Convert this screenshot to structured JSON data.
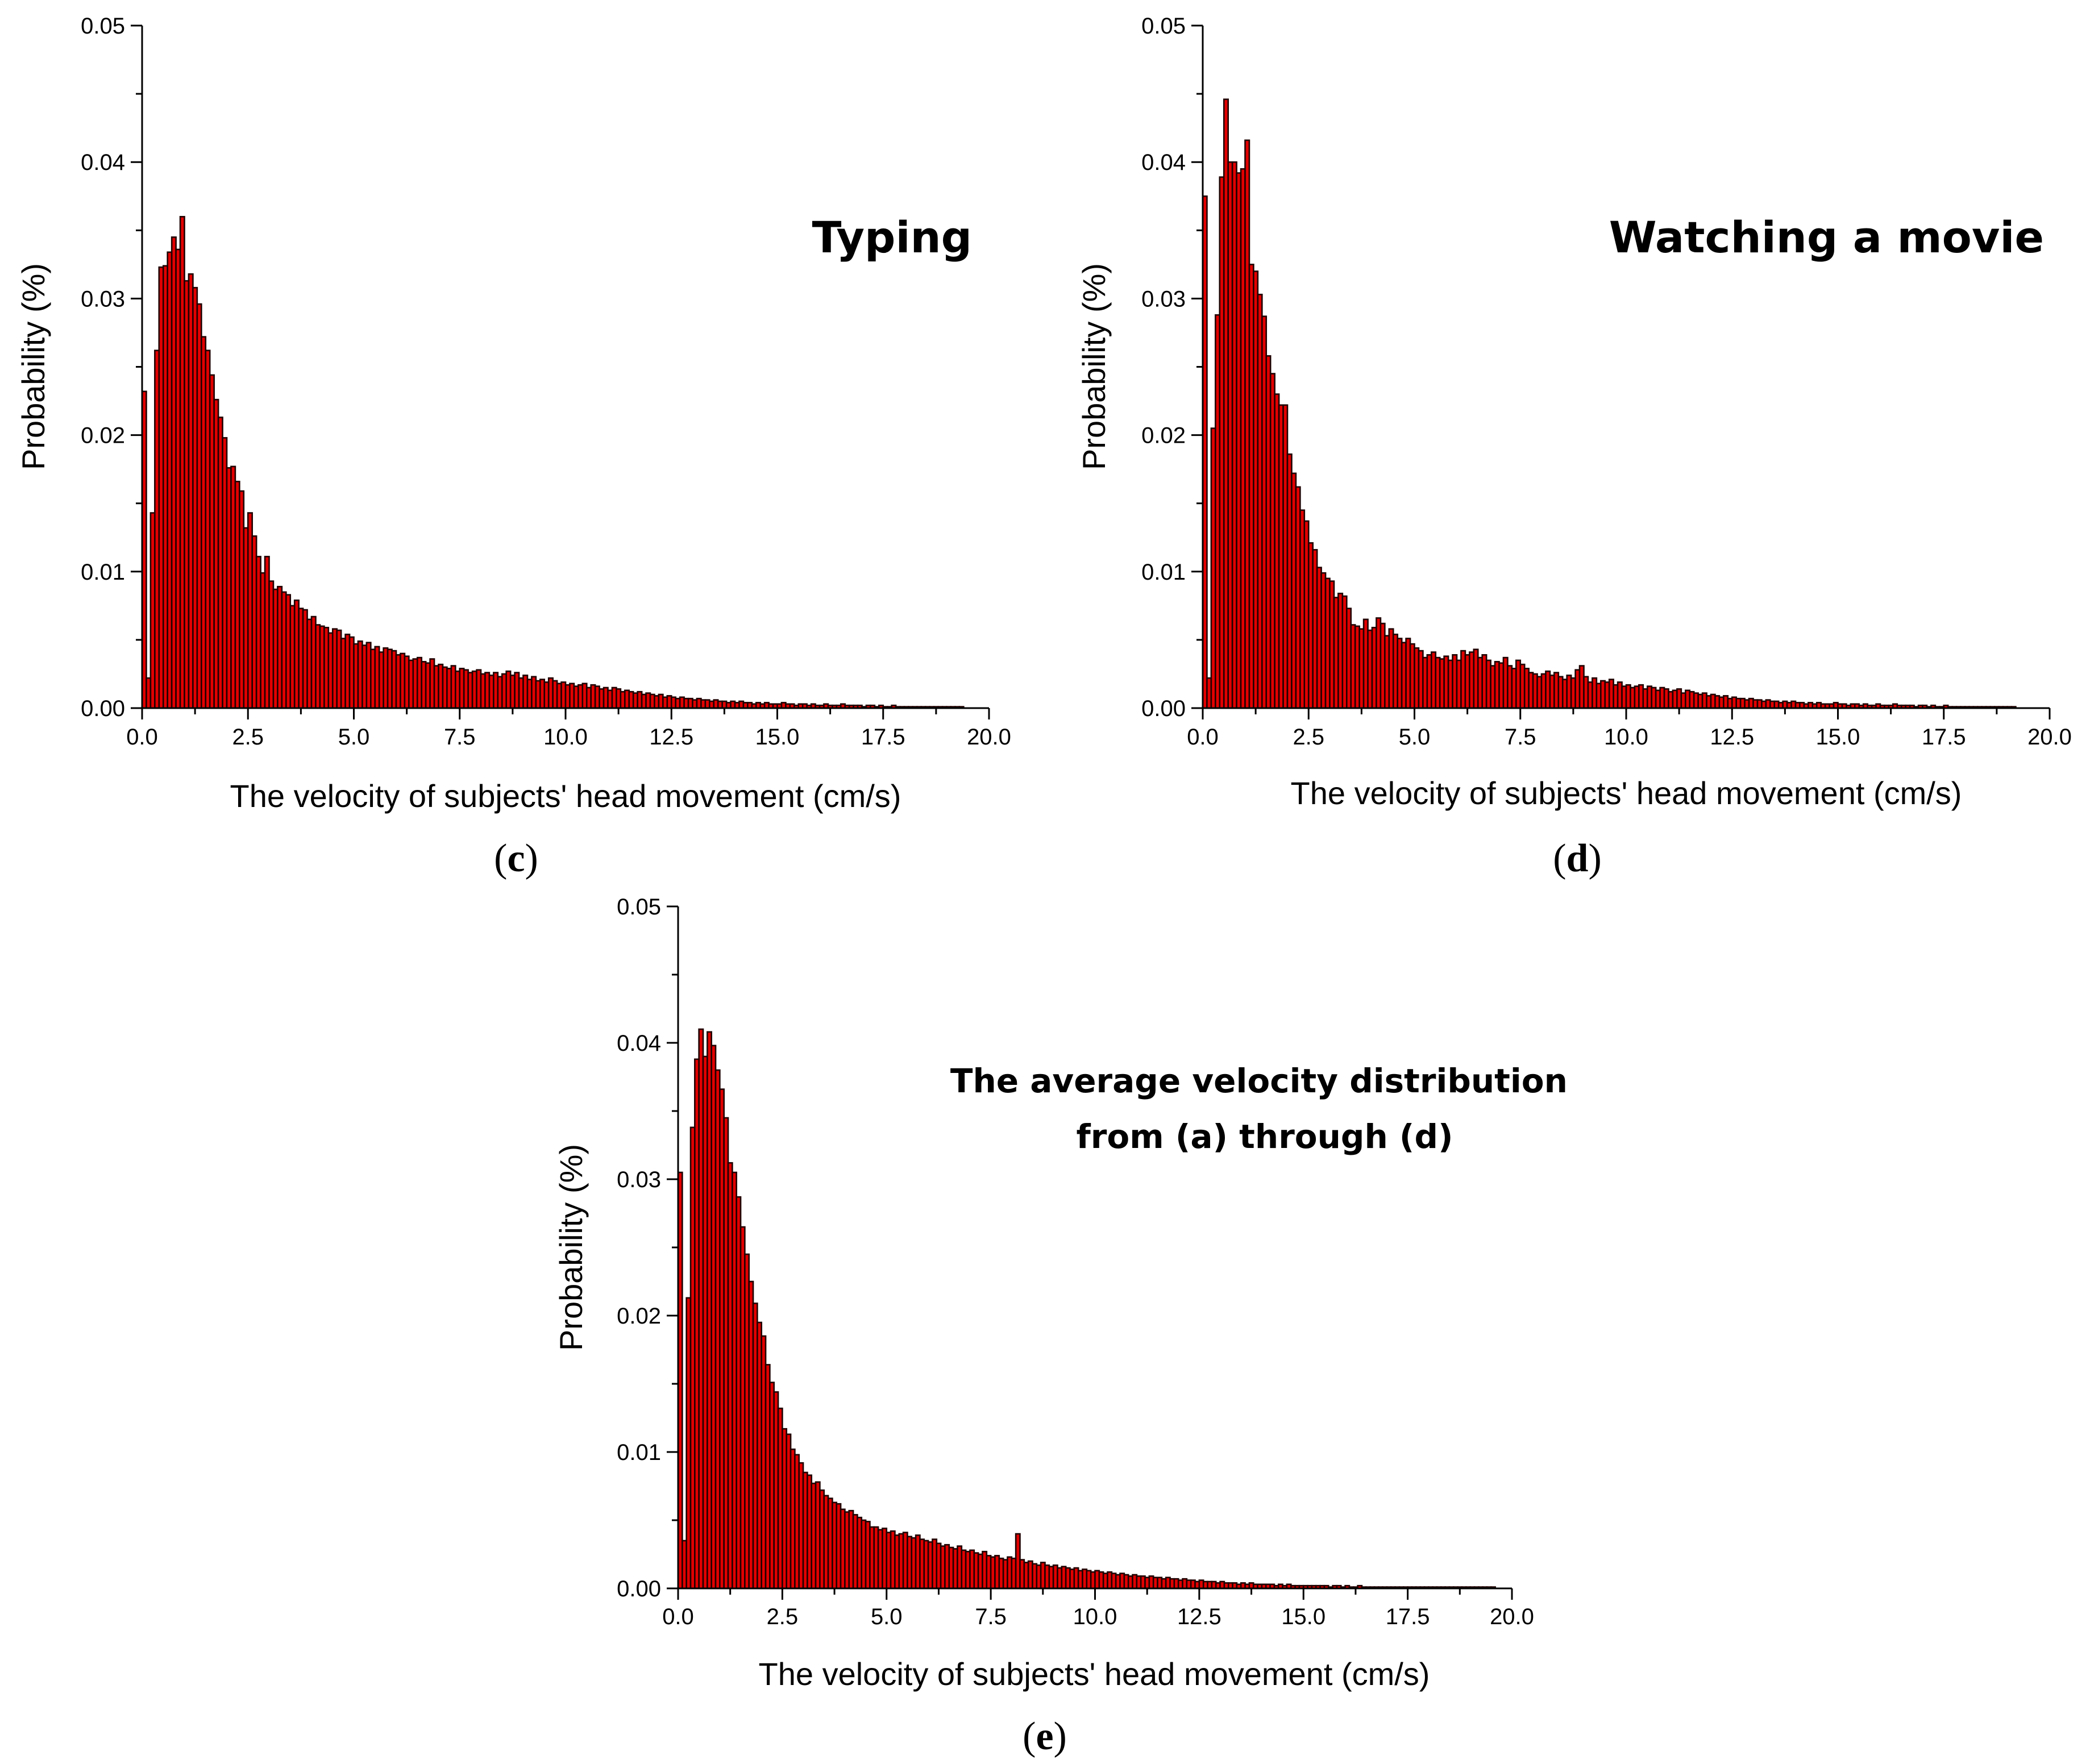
{
  "colors": {
    "bar_fill": "#e30000",
    "bar_edge": "#200000",
    "axis": "#000000"
  },
  "chart_data": [
    {
      "id": "c",
      "type": "bar",
      "panel_label": "c",
      "annotation": [
        "Typing"
      ],
      "xlabel": "The velocity of subjects' head movement (cm/s)",
      "ylabel": "Probability (%)",
      "xlim": [
        0,
        20
      ],
      "ylim": [
        0,
        0.05
      ],
      "xticks": [
        "0.0",
        "2.5",
        "5.0",
        "7.5",
        "10.0",
        "12.5",
        "15.0",
        "17.5",
        "20.0"
      ],
      "yticks": [
        "0.00",
        "0.01",
        "0.02",
        "0.03",
        "0.04",
        "0.05"
      ],
      "bin_width": 0.1,
      "values": [
        0.0232,
        0.0022,
        0.0143,
        0.0262,
        0.0323,
        0.0324,
        0.0334,
        0.0345,
        0.0336,
        0.036,
        0.0313,
        0.0318,
        0.0308,
        0.0296,
        0.0272,
        0.0262,
        0.0244,
        0.0226,
        0.0213,
        0.0198,
        0.0176,
        0.0177,
        0.0166,
        0.0159,
        0.0132,
        0.0143,
        0.0126,
        0.0111,
        0.0099,
        0.0111,
        0.0093,
        0.0087,
        0.0089,
        0.0085,
        0.0083,
        0.0075,
        0.0079,
        0.0073,
        0.0072,
        0.0065,
        0.0067,
        0.0061,
        0.006,
        0.0059,
        0.0055,
        0.0058,
        0.0057,
        0.0051,
        0.0054,
        0.0052,
        0.0047,
        0.0049,
        0.0046,
        0.0048,
        0.0043,
        0.0045,
        0.0041,
        0.0044,
        0.0043,
        0.0042,
        0.0039,
        0.004,
        0.0038,
        0.0035,
        0.0036,
        0.0037,
        0.0034,
        0.0033,
        0.0036,
        0.0031,
        0.0032,
        0.003,
        0.0029,
        0.0031,
        0.0027,
        0.0029,
        0.0028,
        0.0026,
        0.0027,
        0.0028,
        0.0025,
        0.0026,
        0.0024,
        0.0026,
        0.0023,
        0.0025,
        0.0027,
        0.0024,
        0.0026,
        0.0022,
        0.0024,
        0.0021,
        0.0023,
        0.002,
        0.0021,
        0.0019,
        0.0022,
        0.002,
        0.0018,
        0.0019,
        0.0017,
        0.0018,
        0.0016,
        0.0017,
        0.0018,
        0.0015,
        0.0017,
        0.0016,
        0.0014,
        0.0015,
        0.0013,
        0.0015,
        0.0014,
        0.0012,
        0.0013,
        0.0012,
        0.0011,
        0.0012,
        0.001,
        0.0011,
        0.001,
        0.0009,
        0.001,
        0.0008,
        0.0009,
        0.0008,
        0.0007,
        0.0008,
        0.0007,
        0.0007,
        0.0006,
        0.0007,
        0.0006,
        0.0006,
        0.0005,
        0.0006,
        0.0005,
        0.0005,
        0.0004,
        0.0005,
        0.0004,
        0.0005,
        0.0004,
        0.0004,
        0.0003,
        0.0004,
        0.0003,
        0.0004,
        0.0003,
        0.0003,
        0.0003,
        0.0004,
        0.0003,
        0.0003,
        0.0002,
        0.0003,
        0.0003,
        0.0002,
        0.0003,
        0.0002,
        0.0002,
        0.0003,
        0.0002,
        0.0002,
        0.0002,
        0.0003,
        0.0002,
        0.0002,
        0.0002,
        0.0002,
        0.0001,
        0.0002,
        0.0002,
        0.0001,
        0.0002,
        0.0001,
        0.0001,
        0.0002,
        0.0001,
        0.0001,
        0.0001,
        0.0001,
        0.0001,
        0.0001,
        0.0001,
        0.0001,
        0.0001,
        0.0001,
        0.0001,
        0.0001,
        0.0001,
        0.0001,
        0.0001,
        0.0001
      ]
    },
    {
      "id": "d",
      "type": "bar",
      "panel_label": "d",
      "annotation": [
        "Watching a movie"
      ],
      "xlabel": "The velocity of subjects' head movement (cm/s)",
      "ylabel": "Probability (%)",
      "xlim": [
        0,
        20
      ],
      "ylim": [
        0,
        0.05
      ],
      "xticks": [
        "0.0",
        "2.5",
        "5.0",
        "7.5",
        "10.0",
        "12.5",
        "15.0",
        "17.5",
        "20.0"
      ],
      "yticks": [
        "0.00",
        "0.01",
        "0.02",
        "0.03",
        "0.04",
        "0.05"
      ],
      "bin_width": 0.1,
      "values": [
        0.0375,
        0.0022,
        0.0205,
        0.0288,
        0.0389,
        0.0446,
        0.04,
        0.04,
        0.0392,
        0.0395,
        0.0416,
        0.0325,
        0.032,
        0.0303,
        0.0287,
        0.0258,
        0.0245,
        0.023,
        0.0222,
        0.0222,
        0.0186,
        0.0172,
        0.0162,
        0.0145,
        0.0137,
        0.0121,
        0.0116,
        0.0103,
        0.0099,
        0.0095,
        0.0093,
        0.0081,
        0.0084,
        0.0082,
        0.0073,
        0.0061,
        0.006,
        0.0058,
        0.0065,
        0.0057,
        0.0059,
        0.0066,
        0.0062,
        0.0053,
        0.0058,
        0.0054,
        0.0051,
        0.0048,
        0.0051,
        0.0047,
        0.0044,
        0.0042,
        0.0037,
        0.0039,
        0.0041,
        0.0037,
        0.0036,
        0.0038,
        0.0035,
        0.0039,
        0.0035,
        0.0042,
        0.0039,
        0.0041,
        0.0043,
        0.0037,
        0.0039,
        0.0035,
        0.0031,
        0.0034,
        0.0033,
        0.0037,
        0.0031,
        0.0029,
        0.0035,
        0.0032,
        0.0029,
        0.0026,
        0.0025,
        0.0023,
        0.0025,
        0.0027,
        0.0024,
        0.0026,
        0.0023,
        0.0021,
        0.0024,
        0.0022,
        0.0028,
        0.0031,
        0.0023,
        0.0019,
        0.0022,
        0.0018,
        0.002,
        0.0019,
        0.0021,
        0.0017,
        0.0019,
        0.0016,
        0.0017,
        0.0015,
        0.0016,
        0.0017,
        0.0014,
        0.0016,
        0.0015,
        0.0013,
        0.0015,
        0.0014,
        0.0012,
        0.0013,
        0.0014,
        0.0011,
        0.0013,
        0.0012,
        0.0011,
        0.001,
        0.0011,
        0.0009,
        0.001,
        0.0009,
        0.0008,
        0.0009,
        0.0007,
        0.0008,
        0.0007,
        0.0007,
        0.0006,
        0.0007,
        0.0006,
        0.0006,
        0.0005,
        0.0006,
        0.0005,
        0.0005,
        0.0004,
        0.0005,
        0.0004,
        0.0005,
        0.0004,
        0.0004,
        0.0003,
        0.0004,
        0.0003,
        0.0004,
        0.0003,
        0.0003,
        0.0003,
        0.0004,
        0.0003,
        0.0003,
        0.0002,
        0.0003,
        0.0003,
        0.0002,
        0.0003,
        0.0002,
        0.0002,
        0.0003,
        0.0002,
        0.0002,
        0.0002,
        0.0003,
        0.0002,
        0.0002,
        0.0002,
        0.0002,
        0.0001,
        0.0002,
        0.0002,
        0.0001,
        0.0002,
        0.0001,
        0.0001,
        0.0002,
        0.0001,
        0.0001,
        0.0001,
        0.0001,
        0.0001,
        0.0001,
        0.0001,
        0.0001,
        0.0001,
        0.0001,
        0.0001,
        0.0001,
        0.0001,
        0.0001,
        0.0001,
        0.0001
      ]
    },
    {
      "id": "e",
      "type": "bar",
      "panel_label": "e",
      "annotation": [
        "The average velocity distribution",
        "from (a) through (d)"
      ],
      "xlabel": "The velocity of subjects' head movement (cm/s)",
      "ylabel": "Probability (%)",
      "xlim": [
        0,
        20
      ],
      "ylim": [
        0,
        0.05
      ],
      "xticks": [
        "0.0",
        "2.5",
        "5.0",
        "7.5",
        "10.0",
        "12.5",
        "15.0",
        "17.5",
        "20.0"
      ],
      "yticks": [
        "0.00",
        "0.01",
        "0.02",
        "0.03",
        "0.04",
        "0.05"
      ],
      "bin_width": 0.1,
      "values": [
        0.0305,
        0.0035,
        0.0213,
        0.0338,
        0.0388,
        0.041,
        0.039,
        0.0408,
        0.0398,
        0.038,
        0.0366,
        0.0345,
        0.0312,
        0.0305,
        0.0287,
        0.0265,
        0.0245,
        0.0225,
        0.0209,
        0.0195,
        0.0185,
        0.0164,
        0.0151,
        0.0144,
        0.0132,
        0.0117,
        0.0113,
        0.0102,
        0.0098,
        0.0092,
        0.0085,
        0.0083,
        0.0077,
        0.0078,
        0.0072,
        0.0068,
        0.0066,
        0.0063,
        0.0062,
        0.0058,
        0.0056,
        0.0057,
        0.0054,
        0.0052,
        0.005,
        0.0049,
        0.0045,
        0.0045,
        0.0043,
        0.0044,
        0.0041,
        0.0042,
        0.0039,
        0.004,
        0.0041,
        0.0038,
        0.0037,
        0.0039,
        0.0036,
        0.0035,
        0.0034,
        0.0036,
        0.0033,
        0.0031,
        0.0032,
        0.003,
        0.0029,
        0.0031,
        0.0028,
        0.0027,
        0.0028,
        0.0026,
        0.0025,
        0.0027,
        0.0024,
        0.0023,
        0.0024,
        0.0022,
        0.0021,
        0.0023,
        0.0022,
        0.004,
        0.0021,
        0.0019,
        0.002,
        0.0018,
        0.0017,
        0.0019,
        0.0017,
        0.0016,
        0.0017,
        0.0015,
        0.0016,
        0.0015,
        0.0014,
        0.0015,
        0.0013,
        0.0014,
        0.0013,
        0.0012,
        0.0013,
        0.0012,
        0.0011,
        0.0012,
        0.0011,
        0.001,
        0.0011,
        0.001,
        0.0009,
        0.001,
        0.0009,
        0.0009,
        0.0008,
        0.0009,
        0.0008,
        0.0008,
        0.0007,
        0.0008,
        0.0007,
        0.0007,
        0.0006,
        0.0007,
        0.0006,
        0.0006,
        0.0005,
        0.0006,
        0.0005,
        0.0005,
        0.0005,
        0.0004,
        0.0005,
        0.0004,
        0.0004,
        0.0004,
        0.0003,
        0.0004,
        0.0003,
        0.0004,
        0.0003,
        0.0003,
        0.0003,
        0.0003,
        0.0003,
        0.0002,
        0.0003,
        0.0002,
        0.0003,
        0.0002,
        0.0002,
        0.0002,
        0.0002,
        0.0002,
        0.0002,
        0.0002,
        0.0002,
        0.0002,
        0.0001,
        0.0002,
        0.0002,
        0.0001,
        0.0002,
        0.0001,
        0.0001,
        0.0002,
        0.0001,
        0.0001,
        0.0001,
        0.0001,
        0.0001,
        0.0001,
        0.0001,
        0.0001,
        0.0001,
        0.0001,
        0.0001,
        0.0001,
        0.0001,
        0.0001,
        0.0001,
        0.0001,
        0.0001,
        0.0001,
        0.0001,
        0.0001,
        0.0001,
        0.0001,
        0.0001,
        0.0001,
        0.0001,
        0.0001,
        0.0001,
        0.0001,
        0.0001,
        0.0001,
        0.0001,
        0.0001
      ]
    }
  ]
}
